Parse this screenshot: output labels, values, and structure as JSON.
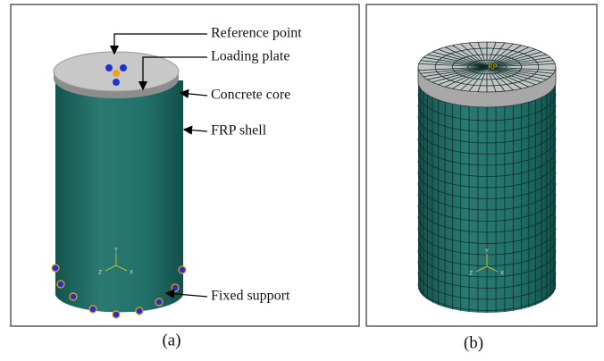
{
  "panel_a": {
    "labels": [
      "Reference point",
      "Loading plate",
      "Concrete core",
      "FRP shell",
      "Fixed support"
    ],
    "axes": [
      "Y",
      "X",
      "Z"
    ],
    "caption": "(a)"
  },
  "panel_b": {
    "rp": "RP",
    "axes": [
      "Y",
      "X",
      "Z"
    ],
    "caption": "(b)"
  }
}
